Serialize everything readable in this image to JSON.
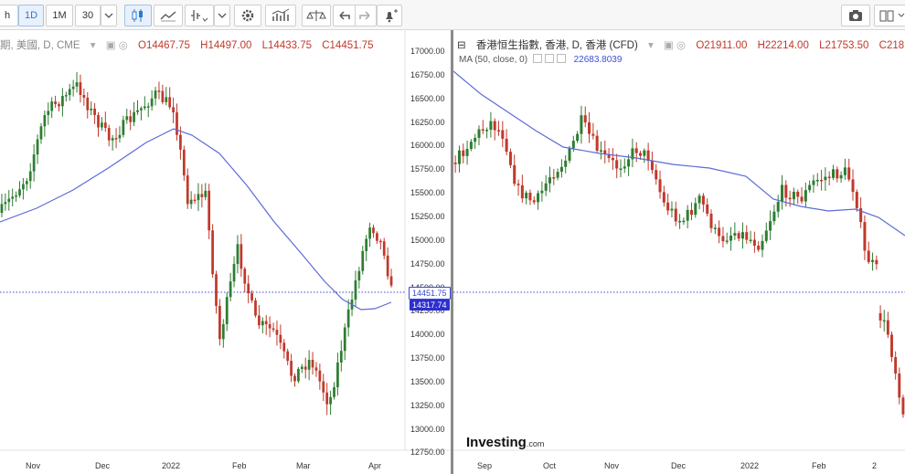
{
  "toolbar": {
    "interval_h": "h",
    "interval_1d": "1D",
    "interval_1m": "1M",
    "interval_30": "30",
    "icons": [
      "candles-icon",
      "line-icon",
      "indicator-icon",
      "settings-icon",
      "indicators-icon",
      "compare-icon",
      "undo-icon",
      "redo-icon",
      "alert-icon",
      "camera-icon",
      "layout-icon"
    ]
  },
  "left_chart": {
    "title": "期貨时期, 美國, D, CME",
    "title_visible": "期, 美國, D, CME",
    "open": "O14467.75",
    "high": "H14497.00",
    "low": "L14433.75",
    "close": "C14451.75",
    "last_price": "14451.75",
    "ma_price": "14317.74",
    "y_ticks": [
      "17000.00",
      "16750.00",
      "16500.00",
      "16250.00",
      "16000.00",
      "15750.00",
      "15500.00",
      "15250.00",
      "15000.00",
      "14750.00",
      "14500.00",
      "14250.00",
      "14000.00",
      "13750.00",
      "13500.00",
      "13250.00",
      "13000.00",
      "12750.00"
    ],
    "x_ticks": [
      "Nov",
      "Dec",
      "2022",
      "Feb",
      "Mar",
      "Apr"
    ]
  },
  "right_chart": {
    "title": "香港恒生指數, 香港, D, 香港 (CFD)",
    "open": "O21911.00",
    "high": "H22214.00",
    "low": "L21753.50",
    "close": "C218",
    "ma_label": "MA (50, close, 0)",
    "ma_value": "22683.8039",
    "x_ticks": [
      "Sep",
      "Oct",
      "Nov",
      "Dec",
      "2022",
      "Feb",
      "2"
    ]
  },
  "branding": {
    "logo": "Investing",
    "logo_suffix": ".com"
  },
  "colors": {
    "up": "#2e7d32",
    "down": "#c0392b",
    "ma": "#5c6bd6",
    "accent": "#2a7ad4",
    "price_line": "#3949d6"
  }
}
